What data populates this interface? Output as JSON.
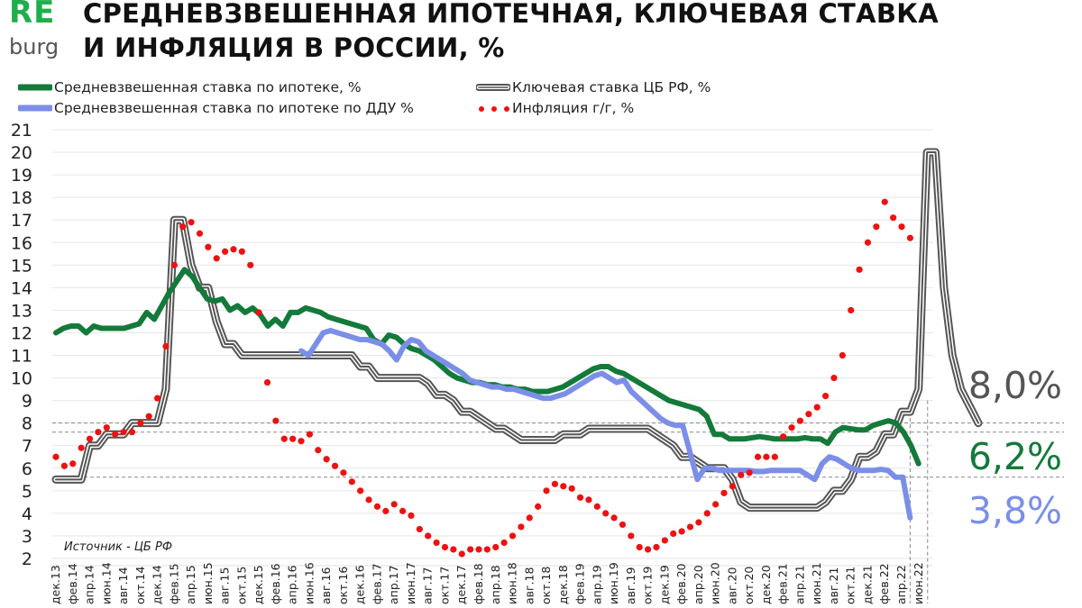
{
  "logo": {
    "top": "RE",
    "bottom": "burg"
  },
  "title": {
    "line1": "СРЕДНЕВЗВЕШЕННАЯ ИПОТЕЧНАЯ, КЛЮЧЕВАЯ СТАВКА",
    "line2": "И ИНФЛЯЦИЯ В РОССИИ, %"
  },
  "legend": [
    {
      "label": "Средневзвешенная ставка по ипотеке, %",
      "color": "#137a3a",
      "style": "solid"
    },
    {
      "label": "Ключевая ставка ЦБ РФ, %",
      "color": "#555555",
      "style": "double"
    },
    {
      "label": "Средневзвешенная ставка по ипотеке по ДДУ %",
      "color": "#7b8ee8",
      "style": "solid"
    },
    {
      "label": "Инфляция г/г,  %",
      "color": "#ee1111",
      "style": "dots"
    }
  ],
  "source": "Источник  - ЦБ РФ",
  "annotations": [
    {
      "text": "8,0%",
      "color": "#555555",
      "value": 8.0
    },
    {
      "text": "6,2%",
      "color": "#137a3a",
      "value": 6.2
    },
    {
      "text": "3,8%",
      "color": "#7b8ee8",
      "value": 3.8
    }
  ],
  "chart_data": {
    "type": "line",
    "title": "СРЕДНЕВЗВЕШЕННАЯ ИПОТЕЧНАЯ, КЛЮЧЕВАЯ СТАВКА И ИНФЛЯЦИЯ В РОССИИ, %",
    "xlabel": "",
    "ylabel": "%",
    "ylim": [
      2,
      21
    ],
    "yticks": [
      2,
      3,
      4,
      5,
      6,
      7,
      8,
      9,
      10,
      11,
      12,
      13,
      14,
      15,
      16,
      17,
      18,
      19,
      20,
      21
    ],
    "grid": true,
    "legend_position": "top",
    "x_start": "дек.13",
    "x_end": "июн.22",
    "x_step": "month",
    "x_tick_labels": [
      "дек.13",
      "фев.14",
      "апр.14",
      "июн.14",
      "авг.14",
      "окт.14",
      "дек.14",
      "фев.15",
      "апр.15",
      "июн.15",
      "авг.15",
      "окт.15",
      "дек.15",
      "фев.16",
      "апр.16",
      "июн.16",
      "авг.16",
      "окт.16",
      "дек.16",
      "фев.17",
      "апр.17",
      "июн.17",
      "авг.17",
      "окт.17",
      "дек.17",
      "фев.18",
      "апр.18",
      "июн.18",
      "авг.18",
      "окт.18",
      "дек.18",
      "фев.19",
      "апр.19",
      "июн.19",
      "авг.19",
      "окт.19",
      "дек.19",
      "фев.20",
      "апр.20",
      "июн.20",
      "авг.20",
      "окт.20",
      "дек.20",
      "фев.21",
      "апр.21",
      "июн.21",
      "авг.21",
      "окт.21",
      "дек.21",
      "фев.22",
      "апр.22",
      "июн.22"
    ],
    "reference_lines": [
      8.0,
      7.6,
      5.6
    ],
    "series": [
      {
        "name": "Средневзвешенная ставка по ипотеке, %",
        "color": "#137a3a",
        "start_index": 0,
        "values": [
          12.0,
          12.2,
          12.3,
          12.3,
          12.0,
          12.3,
          12.2,
          12.2,
          12.2,
          12.2,
          12.3,
          12.4,
          12.9,
          12.6,
          13.2,
          13.8,
          14.3,
          14.8,
          14.5,
          14.0,
          13.5,
          13.4,
          13.5,
          13.0,
          13.2,
          12.9,
          13.1,
          12.8,
          12.3,
          12.6,
          12.3,
          12.9,
          12.9,
          13.1,
          13.0,
          12.9,
          12.7,
          12.6,
          12.5,
          12.4,
          12.3,
          12.2,
          11.7,
          11.5,
          11.9,
          11.8,
          11.5,
          11.3,
          11.2,
          11.0,
          10.8,
          10.5,
          10.2,
          10.0,
          9.9,
          9.8,
          9.8,
          9.7,
          9.7,
          9.6,
          9.6,
          9.5,
          9.5,
          9.4,
          9.4,
          9.4,
          9.5,
          9.6,
          9.8,
          10.0,
          10.2,
          10.4,
          10.5,
          10.5,
          10.3,
          10.2,
          10.0,
          9.8,
          9.6,
          9.4,
          9.2,
          9.0,
          8.9,
          8.8,
          8.7,
          8.6,
          8.3,
          7.5,
          7.5,
          7.3,
          7.3,
          7.3,
          7.35,
          7.4,
          7.35,
          7.3,
          7.3,
          7.3,
          7.3,
          7.35,
          7.3,
          7.3,
          7.1,
          7.6,
          7.8,
          7.75,
          7.7,
          7.7,
          7.9,
          8.0,
          8.1,
          8.0,
          7.6,
          7.0,
          6.2
        ]
      },
      {
        "name": "Средневзвешенная ставка по ипотеке по ДДУ %",
        "color": "#7b8ee8",
        "start_index": 29,
        "values": [
          11.2,
          11.0,
          11.5,
          12.0,
          12.1,
          12.0,
          11.9,
          11.8,
          11.7,
          11.7,
          11.6,
          11.5,
          11.2,
          10.8,
          11.4,
          11.7,
          11.6,
          11.2,
          11.0,
          10.8,
          10.6,
          10.4,
          10.2,
          9.9,
          9.8,
          9.7,
          9.6,
          9.6,
          9.5,
          9.5,
          9.4,
          9.3,
          9.2,
          9.1,
          9.1,
          9.2,
          9.3,
          9.5,
          9.7,
          9.9,
          10.1,
          10.2,
          10.0,
          9.8,
          9.9,
          9.4,
          9.1,
          8.8,
          8.5,
          8.2,
          8.0,
          7.9,
          7.9,
          6.7,
          5.5,
          6.0,
          6.0,
          5.9,
          5.9,
          5.9,
          5.9,
          5.9,
          5.85,
          5.85,
          5.9,
          5.9,
          5.9,
          5.9,
          5.9,
          5.7,
          5.5,
          6.2,
          6.5,
          6.4,
          6.2,
          6.0,
          5.9,
          5.9,
          5.9,
          5.95,
          5.9,
          5.6,
          5.6,
          3.8
        ]
      },
      {
        "name": "Ключевая ставка ЦБ РФ, %",
        "color": "#555555",
        "start_index": 0,
        "values": [
          5.5,
          5.5,
          5.5,
          5.5,
          7.0,
          7.0,
          7.5,
          7.5,
          7.5,
          8.0,
          8.0,
          8.0,
          8.0,
          9.5,
          17.0,
          17.0,
          15.0,
          14.0,
          14.0,
          12.5,
          11.5,
          11.5,
          11.0,
          11.0,
          11.0,
          11.0,
          11.0,
          11.0,
          11.0,
          11.0,
          11.0,
          11.0,
          11.0,
          11.0,
          11.0,
          11.0,
          10.5,
          10.5,
          10.0,
          10.0,
          10.0,
          10.0,
          10.0,
          10.0,
          9.75,
          9.25,
          9.25,
          9.0,
          8.5,
          8.5,
          8.25,
          8.0,
          7.75,
          7.75,
          7.5,
          7.25,
          7.25,
          7.25,
          7.25,
          7.25,
          7.5,
          7.5,
          7.5,
          7.75,
          7.75,
          7.75,
          7.75,
          7.75,
          7.75,
          7.75,
          7.75,
          7.5,
          7.25,
          7.0,
          6.5,
          6.5,
          6.25,
          6.0,
          6.0,
          6.0,
          5.5,
          4.5,
          4.25,
          4.25,
          4.25,
          4.25,
          4.25,
          4.25,
          4.25,
          4.25,
          4.25,
          4.5,
          5.0,
          5.0,
          5.5,
          6.5,
          6.5,
          6.75,
          7.5,
          7.5,
          8.5,
          8.5,
          9.5,
          20.0,
          20.0,
          14.0,
          11.0,
          9.5,
          8.0
        ]
      },
      {
        "name": "Инфляция г/г,  %",
        "color": "#ee1111",
        "start_index": 0,
        "values": [
          6.5,
          6.1,
          6.2,
          6.9,
          7.3,
          7.6,
          7.8,
          7.5,
          7.6,
          7.6,
          8.0,
          8.3,
          9.1,
          11.4,
          15.0,
          16.7,
          16.9,
          16.4,
          15.8,
          15.3,
          15.6,
          15.7,
          15.6,
          15.0,
          12.9,
          9.8,
          8.1,
          7.3,
          7.3,
          7.2,
          7.5,
          6.8,
          6.4,
          6.1,
          5.8,
          5.4,
          5.0,
          4.6,
          4.3,
          4.1,
          4.4,
          4.1,
          3.9,
          3.3,
          3.0,
          2.7,
          2.5,
          2.4,
          2.2,
          2.4,
          2.4,
          2.4,
          2.5,
          2.7,
          3.0,
          3.4,
          3.8,
          4.3,
          5.0,
          5.3,
          5.2,
          5.1,
          4.7,
          4.6,
          4.3,
          4.0,
          3.8,
          3.5,
          3.0,
          2.5,
          2.4,
          2.5,
          2.8,
          3.1,
          3.2,
          3.4,
          3.6,
          4.0,
          4.4,
          4.9,
          5.2,
          5.7,
          5.8,
          6.5,
          6.5,
          6.5,
          7.4,
          7.8,
          8.1,
          8.4,
          8.7,
          9.2,
          10.0,
          11.0,
          13.0,
          14.8,
          16.0,
          16.7,
          17.8,
          17.1,
          16.7,
          16.2
        ]
      }
    ]
  }
}
